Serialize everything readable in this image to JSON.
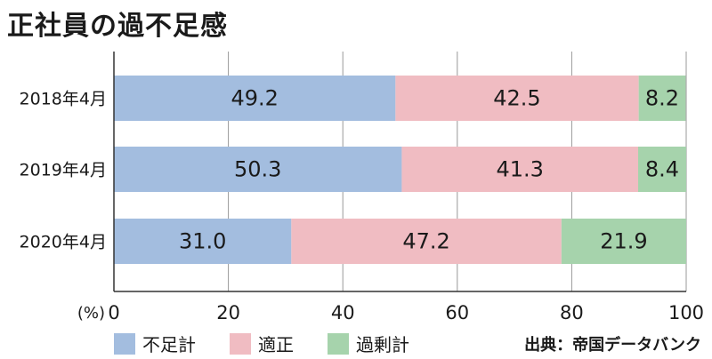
{
  "title": "正社員の過不足感",
  "source": "出典：帝国データバンク",
  "colors": {
    "shortage": "#a3bddf",
    "appropriate": "#f0bcc2",
    "surplus": "#a6d3ac",
    "grid": "#999999",
    "axis": "#333333"
  },
  "chart_data": {
    "type": "bar",
    "orientation": "horizontal",
    "stacked": true,
    "categories": [
      "2018年4月",
      "2019年4月",
      "2020年4月"
    ],
    "series": [
      {
        "name": "不足計",
        "values": [
          49.2,
          50.3,
          31.0
        ],
        "labels": [
          "49.2",
          "50.3",
          "31.0"
        ]
      },
      {
        "name": "適正",
        "values": [
          42.5,
          41.3,
          47.2
        ],
        "labels": [
          "42.5",
          "41.3",
          "47.2"
        ]
      },
      {
        "name": "過剰計",
        "values": [
          8.2,
          8.4,
          21.9
        ],
        "labels": [
          "8.2",
          "8.4",
          "21.9"
        ]
      }
    ],
    "xlim": [
      0,
      100
    ],
    "xticks": [
      "0",
      "20",
      "40",
      "60",
      "80",
      "100"
    ],
    "xunit": "(%)",
    "grid": true,
    "legend_position": "bottom-left"
  }
}
